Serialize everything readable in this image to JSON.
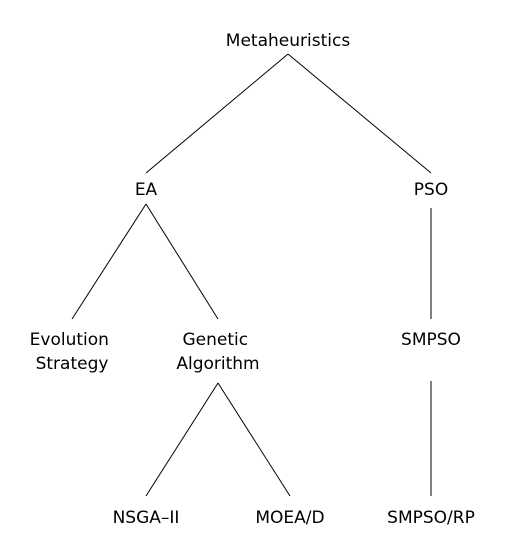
{
  "tree": {
    "nodes": {
      "metaheuristics": {
        "lines": [
          "Metaheuristics"
        ]
      },
      "ea": {
        "lines": [
          "EA"
        ]
      },
      "pso": {
        "lines": [
          "PSO"
        ]
      },
      "evolution_strategy": {
        "lines": [
          "Evolution",
          "Strategy"
        ]
      },
      "genetic_algorithm": {
        "lines": [
          "Genetic",
          "Algorithm"
        ]
      },
      "smpso": {
        "lines": [
          "SMPSO"
        ]
      },
      "nsga2": {
        "lines": [
          "NSGA–II"
        ]
      },
      "moead": {
        "lines": [
          "MOEA/D"
        ]
      },
      "smpso_rp": {
        "lines": [
          "SMPSO/RP"
        ]
      }
    },
    "edges": [
      [
        "metaheuristics",
        "ea"
      ],
      [
        "metaheuristics",
        "pso"
      ],
      [
        "ea",
        "evolution_strategy"
      ],
      [
        "ea",
        "genetic_algorithm"
      ],
      [
        "pso",
        "smpso"
      ],
      [
        "genetic_algorithm",
        "nsga2"
      ],
      [
        "genetic_algorithm",
        "moead"
      ],
      [
        "smpso",
        "smpso_rp"
      ]
    ]
  }
}
